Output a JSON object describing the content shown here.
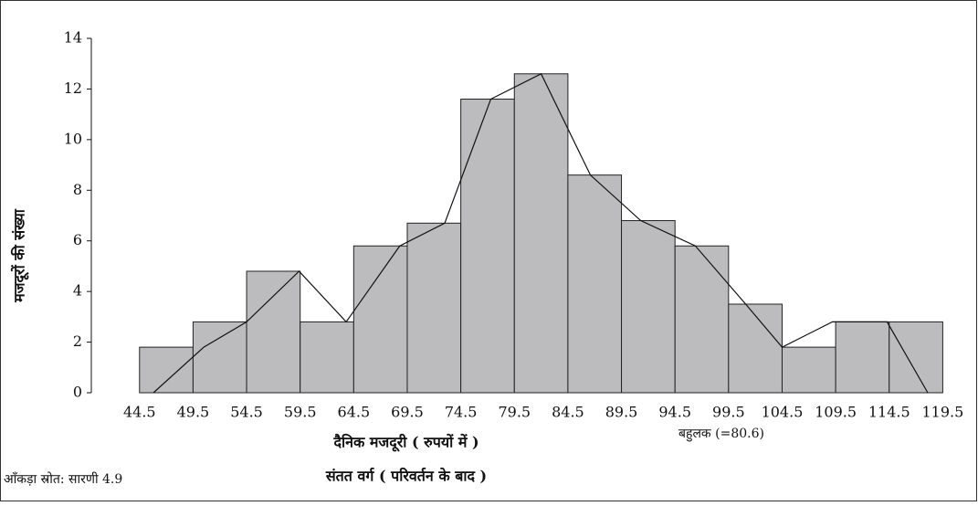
{
  "chart_data": {
    "type": "histogram",
    "bins": [
      44.5,
      49.5,
      54.5,
      59.5,
      64.5,
      69.5,
      74.5,
      79.5,
      84.5,
      89.5,
      94.5,
      99.5,
      104.5,
      109.5,
      114.5,
      119.5
    ],
    "values": [
      1.8,
      2.8,
      4.8,
      2.8,
      5.8,
      6.7,
      11.6,
      12.6,
      8.6,
      6.8,
      5.8,
      3.5,
      1.8,
      2.8,
      2.8
    ],
    "color": "#bcbcbe",
    "polygon": {
      "x": [
        45.8,
        50.5,
        54.5,
        59.4,
        63.8,
        68.8,
        73.0,
        77.3,
        82.0,
        86.6,
        91.3,
        96.4,
        101.1,
        104.5,
        109.2,
        114.3,
        118.1
      ],
      "values": [
        0,
        1.8,
        2.8,
        4.8,
        2.8,
        5.8,
        6.7,
        11.6,
        12.6,
        8.6,
        6.8,
        5.8,
        3.5,
        1.8,
        2.8,
        2.8,
        0
      ]
    },
    "xlim": [
      40,
      121
    ],
    "ylim": [
      0,
      14
    ],
    "xticks": [
      44.5,
      49.5,
      54.5,
      59.5,
      64.5,
      69.5,
      74.5,
      79.5,
      84.5,
      89.5,
      94.5,
      99.5,
      104.5,
      109.5,
      114.5,
      119.5
    ],
    "yticks": [
      0,
      2,
      4,
      6,
      8,
      10,
      12,
      14
    ],
    "ylabel": "मजदूरों की संख्या",
    "xlabel": "दैनिक मजदूरी ( रुपयों में )",
    "subtitle": "संतत वर्ग ( परिवर्तन के बाद )",
    "annotation": "बहुलक (=80.6)",
    "source": "आँकड़ा स्रोत: सारणी 4.9"
  }
}
